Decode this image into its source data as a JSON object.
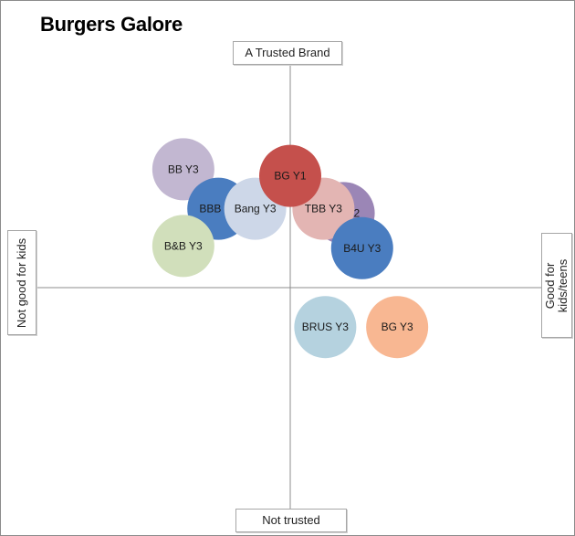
{
  "chart_data": {
    "type": "scatter",
    "title": "Burgers Galore",
    "axes": {
      "y_positive_label": "A Trusted Brand",
      "y_negative_label": "Not trusted",
      "x_positive_label": "Good for kids/teens",
      "x_negative_label": "Not good for kids",
      "xlim": [
        -10,
        10
      ],
      "ylim": [
        -10,
        10
      ],
      "grid": false
    },
    "points": [
      {
        "label": "BB Y3",
        "x": -5.8,
        "y": 5.4,
        "color": "#c2b7d1"
      },
      {
        "label": "BG Y2",
        "x": 2.9,
        "y": 3.4,
        "color": "#9b86b6"
      },
      {
        "label": "TBB Y3",
        "x": 1.8,
        "y": 3.6,
        "color": "#e3b5b3"
      },
      {
        "label": "BBB Y3",
        "x": -3.9,
        "y": 3.6,
        "color": "#4a7dc0"
      },
      {
        "label": "Bang Y3",
        "x": -1.9,
        "y": 3.6,
        "color": "#cdd7e8"
      },
      {
        "label": "BG Y1",
        "x": 0.0,
        "y": 5.1,
        "color": "#c5504c"
      },
      {
        "label": "B&B Y3",
        "x": -5.8,
        "y": 1.9,
        "color": "#d1dfbb"
      },
      {
        "label": "B4U Y3",
        "x": 3.9,
        "y": 1.8,
        "color": "#4a7dc0"
      },
      {
        "label": "BRUS Y3",
        "x": 1.9,
        "y": -1.8,
        "color": "#b5d2df"
      },
      {
        "label": "BG Y3",
        "x": 5.8,
        "y": -1.8,
        "color": "#f8b792"
      }
    ]
  }
}
